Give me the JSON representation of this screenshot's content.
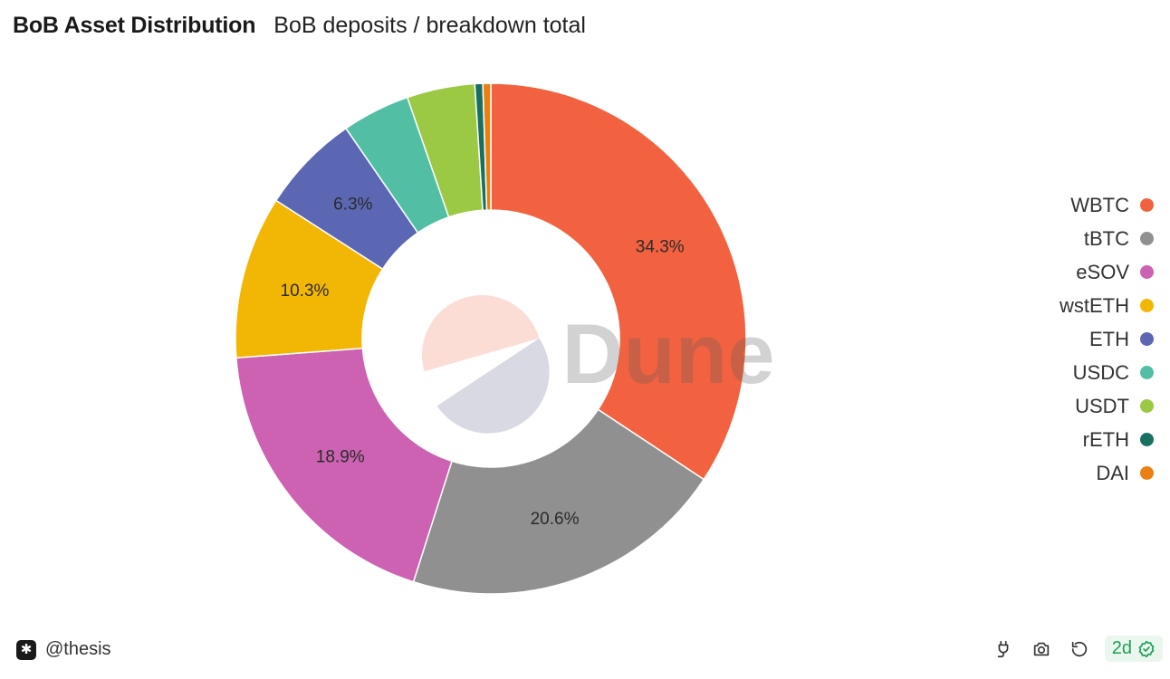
{
  "header": {
    "title": "BoB Asset Distribution",
    "subtitle": "BoB deposits / breakdown total"
  },
  "watermark": "Dune",
  "footer": {
    "author": "@thesis",
    "freshness": "2d",
    "icons": [
      "plug-icon",
      "camera-icon",
      "refresh-icon",
      "check-badge-icon"
    ]
  },
  "chart_data": {
    "type": "pie",
    "donut": true,
    "labels": [
      "WBTC",
      "tBTC",
      "eSOV",
      "wstETH",
      "ETH",
      "USDC",
      "USDT",
      "rETH",
      "DAI"
    ],
    "values": [
      34.3,
      20.6,
      18.9,
      10.3,
      6.3,
      4.3,
      4.3,
      0.5,
      0.5
    ],
    "data_labels": [
      "34.3%",
      "20.6%",
      "18.9%",
      "10.3%",
      "6.3%",
      "",
      "",
      "",
      ""
    ],
    "colors": [
      "#F26240",
      "#909090",
      "#CC62B1",
      "#F2B705",
      "#5B67B3",
      "#52BFA5",
      "#9BC944",
      "#197060",
      "#EB8012"
    ],
    "legend": "right",
    "center_logo_colors": [
      "#FCDDD6",
      "#D9D9E4"
    ]
  }
}
